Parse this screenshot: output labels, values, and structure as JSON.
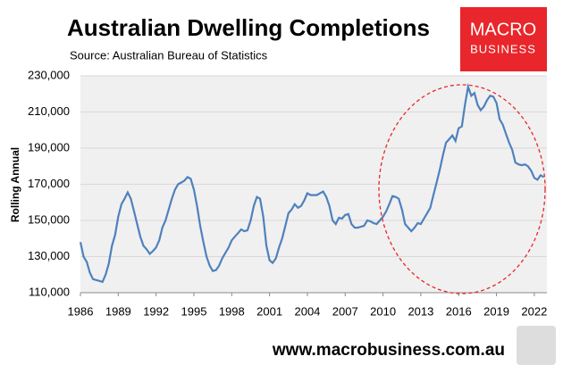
{
  "chart_data": {
    "type": "line",
    "title": "Australian Dwelling Completions",
    "subtitle": "Source: Australian Bureau of Statistics",
    "ylabel": "Rolling Annual",
    "logo": [
      "MACRO",
      "BUSINESS"
    ],
    "footer": "www.macrobusiness.com.au",
    "x": [
      1986,
      1986.25,
      1986.5,
      1986.75,
      1987,
      1987.25,
      1987.5,
      1987.75,
      1988,
      1988.25,
      1988.5,
      1988.75,
      1989,
      1989.25,
      1989.5,
      1989.75,
      1990,
      1990.25,
      1990.5,
      1990.75,
      1991,
      1991.25,
      1991.5,
      1991.75,
      1992,
      1992.25,
      1992.5,
      1992.75,
      1993,
      1993.25,
      1993.5,
      1993.75,
      1994,
      1994.25,
      1994.5,
      1994.75,
      1995,
      1995.25,
      1995.5,
      1995.75,
      1996,
      1996.25,
      1996.5,
      1996.75,
      1997,
      1997.25,
      1997.5,
      1997.75,
      1998,
      1998.25,
      1998.5,
      1998.75,
      1999,
      1999.25,
      1999.5,
      1999.75,
      2000,
      2000.25,
      2000.5,
      2000.75,
      2001,
      2001.25,
      2001.5,
      2001.75,
      2002,
      2002.25,
      2002.5,
      2002.75,
      2003,
      2003.25,
      2003.5,
      2003.75,
      2004,
      2004.25,
      2004.5,
      2004.75,
      2005,
      2005.25,
      2005.5,
      2005.75,
      2006,
      2006.25,
      2006.5,
      2006.75,
      2007,
      2007.25,
      2007.5,
      2007.75,
      2008,
      2008.25,
      2008.5,
      2008.75,
      2009,
      2009.25,
      2009.5,
      2009.75,
      2010,
      2010.25,
      2010.5,
      2010.75,
      2011,
      2011.25,
      2011.5,
      2011.75,
      2012,
      2012.25,
      2012.5,
      2012.75,
      2013,
      2013.25,
      2013.5,
      2013.75,
      2014,
      2014.25,
      2014.5,
      2014.75,
      2015,
      2015.25,
      2015.5,
      2015.75,
      2016,
      2016.25,
      2016.5,
      2016.75,
      2017,
      2017.25,
      2017.5,
      2017.75,
      2018,
      2018.25,
      2018.5,
      2018.75,
      2019,
      2019.25,
      2019.5,
      2019.75,
      2020,
      2020.25,
      2020.5,
      2020.75,
      2021,
      2021.25,
      2021.5,
      2021.75,
      2022,
      2022.25,
      2022.5,
      2022.75
    ],
    "series": [
      {
        "name": "Rolling Annual",
        "color": "#4f81bd",
        "values": [
          138000,
          130000,
          127000,
          121000,
          117500,
          117000,
          116500,
          116000,
          120000,
          126000,
          136000,
          142000,
          152000,
          159000,
          162000,
          165500,
          162000,
          155000,
          148000,
          141000,
          136000,
          134000,
          131500,
          133000,
          135000,
          139000,
          146000,
          150000,
          156000,
          162000,
          167000,
          170000,
          171000,
          172000,
          174000,
          173000,
          167000,
          158000,
          147000,
          138000,
          130000,
          125000,
          122000,
          122500,
          125000,
          129000,
          132000,
          135000,
          139000,
          141000,
          143000,
          145000,
          144000,
          144500,
          150000,
          158000,
          163000,
          162000,
          152000,
          136000,
          128000,
          126500,
          129000,
          135000,
          140000,
          147000,
          154000,
          156000,
          159000,
          157000,
          158000,
          161000,
          165000,
          164000,
          164000,
          164000,
          165000,
          166000,
          163000,
          158000,
          150000,
          148000,
          151500,
          151000,
          153000,
          153500,
          148000,
          146000,
          146000,
          146500,
          147000,
          150000,
          149500,
          148500,
          148000,
          150000,
          152000,
          155000,
          159000,
          163500,
          163000,
          162000,
          156000,
          148000,
          146000,
          144000,
          146000,
          148500,
          148000,
          151000,
          154000,
          157000,
          164000,
          171000,
          178000,
          186000,
          193000,
          195000,
          197000,
          194000,
          201000,
          202000,
          214000,
          224000,
          219000,
          220500,
          214000,
          211000,
          213000,
          216500,
          219000,
          218500,
          215000,
          206000,
          203000,
          198000,
          193000,
          189000,
          182000,
          181000,
          180500,
          181000,
          180000,
          177500,
          173500,
          172500,
          175000,
          174000
        ]
      }
    ],
    "xlim": [
      1986,
      2023
    ],
    "xticks": [
      1986,
      1989,
      1992,
      1995,
      1998,
      2001,
      2004,
      2007,
      2010,
      2013,
      2016,
      2019,
      2022
    ],
    "ylim": [
      110000,
      230000
    ],
    "yticks": [
      {
        "value": 110000,
        "label": "110,000"
      },
      {
        "value": 130000,
        "label": "130,000"
      },
      {
        "value": 150000,
        "label": "150,000"
      },
      {
        "value": 170000,
        "label": "170,000"
      },
      {
        "value": 190000,
        "label": "190,000"
      },
      {
        "value": 210000,
        "label": "210,000"
      },
      {
        "value": 230000,
        "label": "230,000"
      }
    ],
    "grid": true
  }
}
